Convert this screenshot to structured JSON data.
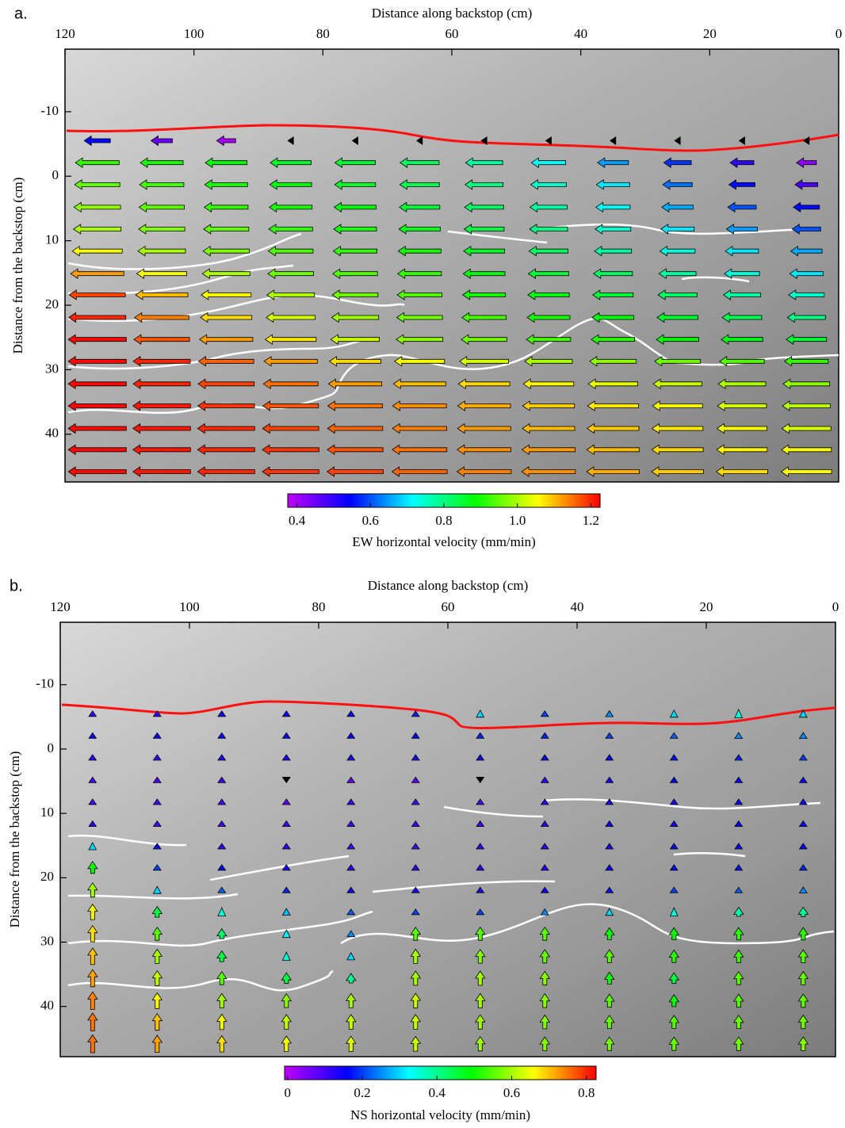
{
  "chart_data": [
    {
      "type": "quiver",
      "panel_label": "a.",
      "x_label": "Distance along backstop (cm)",
      "y_label": "Distance from the backstop (cm)",
      "direction": "left",
      "xlim": [
        120,
        0
      ],
      "xticks": [
        120,
        100,
        80,
        60,
        40,
        20,
        0
      ],
      "ylim": [
        -19.7,
        47.4
      ],
      "yticks": [
        -10,
        0,
        10,
        20,
        30,
        40
      ],
      "x": [
        115,
        105,
        95,
        85,
        75,
        65,
        55,
        45,
        35,
        25,
        15,
        5
      ],
      "y": [
        -5.5,
        -2.1,
        1.3,
        4.8,
        8.2,
        11.6,
        15.1,
        18.4,
        21.9,
        25.3,
        28.7,
        32.2,
        35.6,
        39.1,
        42.4,
        45.8
      ],
      "values": [
        [
          0.55,
          0.45,
          0.4,
          0.1,
          0.1,
          0.1,
          0.1,
          0.1,
          0.1,
          0.1,
          0.1,
          0.1
        ],
        [
          0.92,
          0.9,
          0.88,
          0.86,
          0.85,
          0.82,
          0.78,
          0.72,
          0.65,
          0.58,
          0.5,
          0.42
        ],
        [
          0.95,
          0.93,
          0.9,
          0.88,
          0.86,
          0.83,
          0.8,
          0.75,
          0.7,
          0.62,
          0.55,
          0.48
        ],
        [
          0.98,
          0.95,
          0.92,
          0.9,
          0.88,
          0.85,
          0.82,
          0.78,
          0.72,
          0.66,
          0.6,
          0.55
        ],
        [
          1.0,
          0.97,
          0.95,
          0.92,
          0.9,
          0.87,
          0.84,
          0.8,
          0.75,
          0.7,
          0.65,
          0.6
        ],
        [
          1.05,
          1.0,
          0.97,
          0.94,
          0.92,
          0.9,
          0.86,
          0.82,
          0.78,
          0.74,
          0.7,
          0.66
        ],
        [
          1.12,
          1.05,
          1.0,
          0.96,
          0.94,
          0.92,
          0.88,
          0.85,
          0.82,
          0.78,
          0.74,
          0.7
        ],
        [
          1.18,
          1.1,
          1.05,
          1.0,
          0.96,
          0.94,
          0.9,
          0.87,
          0.85,
          0.82,
          0.78,
          0.75
        ],
        [
          1.2,
          1.14,
          1.08,
          1.03,
          0.99,
          0.96,
          0.93,
          0.9,
          0.88,
          0.86,
          0.83,
          0.8
        ],
        [
          1.22,
          1.17,
          1.12,
          1.07,
          1.02,
          0.98,
          0.96,
          0.93,
          0.91,
          0.89,
          0.87,
          0.85
        ],
        [
          1.22,
          1.2,
          1.16,
          1.12,
          1.08,
          1.05,
          1.03,
          1.0,
          0.98,
          0.96,
          0.94,
          0.92
        ],
        [
          1.22,
          1.2,
          1.18,
          1.15,
          1.12,
          1.1,
          1.08,
          1.06,
          1.04,
          1.02,
          1.0,
          0.98
        ],
        [
          1.22,
          1.21,
          1.19,
          1.17,
          1.15,
          1.13,
          1.11,
          1.09,
          1.07,
          1.05,
          1.03,
          1.01
        ],
        [
          1.22,
          1.21,
          1.2,
          1.18,
          1.16,
          1.14,
          1.12,
          1.1,
          1.09,
          1.07,
          1.05,
          1.03
        ],
        [
          1.22,
          1.21,
          1.2,
          1.19,
          1.17,
          1.15,
          1.13,
          1.12,
          1.1,
          1.08,
          1.06,
          1.05
        ],
        [
          1.22,
          1.21,
          1.2,
          1.19,
          1.18,
          1.16,
          1.14,
          1.13,
          1.11,
          1.09,
          1.08,
          1.06
        ]
      ],
      "colormap": [
        "#c000ff",
        "#0000ff",
        "#00ffff",
        "#00ff00",
        "#ffff00",
        "#ff0000"
      ],
      "below_color": "#000000",
      "colorbar": {
        "label": "EW horizontal velocity (mm/min)",
        "clim": [
          0.375,
          1.225
        ],
        "ticks": [
          0.4,
          0.6,
          0.8,
          {
            "value": 1,
            "label": "1.0"
          },
          1.2
        ]
      }
    },
    {
      "type": "quiver",
      "panel_label": "b.",
      "x_label": "Distance along backstop (cm)",
      "y_label": "Distance from the backstop (cm)",
      "direction": "up",
      "xlim": [
        120,
        0
      ],
      "xticks": [
        120,
        100,
        80,
        60,
        40,
        20,
        0
      ],
      "ylim": [
        -19.7,
        47.8
      ],
      "yticks": [
        -10,
        0,
        10,
        20,
        30,
        40
      ],
      "x": [
        115,
        105,
        95,
        85,
        75,
        65,
        55,
        45,
        35,
        25,
        15,
        5
      ],
      "y": [
        -5.5,
        -2.1,
        1.3,
        4.8,
        8.2,
        11.6,
        15.1,
        18.4,
        21.9,
        25.3,
        28.7,
        32.2,
        35.6,
        39.1,
        42.4,
        45.8
      ],
      "values": [
        [
          0.12,
          0.12,
          0.14,
          0.15,
          0.15,
          0.18,
          0.3,
          0.2,
          0.25,
          0.3,
          0.35,
          0.3
        ],
        [
          0.15,
          0.15,
          0.15,
          0.15,
          0.15,
          0.16,
          0.18,
          0.18,
          0.2,
          0.22,
          0.25,
          0.25
        ],
        [
          0.12,
          0.12,
          0.13,
          0.14,
          0.14,
          0.15,
          0.15,
          0.16,
          0.16,
          0.17,
          0.18,
          0.2
        ],
        [
          0.1,
          0.1,
          0.1,
          -0.05,
          0.08,
          0.08,
          -0.05,
          0.12,
          0.14,
          0.15,
          0.15,
          0.15
        ],
        [
          0.1,
          0.1,
          0.1,
          0.08,
          0.1,
          0.1,
          0.1,
          0.12,
          0.14,
          0.14,
          0.15,
          0.15
        ],
        [
          0.12,
          0.1,
          0.1,
          0.1,
          0.1,
          0.1,
          0.1,
          0.12,
          0.14,
          0.14,
          0.15,
          0.15
        ],
        [
          0.3,
          0.15,
          0.12,
          0.12,
          0.1,
          0.1,
          0.12,
          0.12,
          0.14,
          0.15,
          0.15,
          0.16
        ],
        [
          0.5,
          0.2,
          0.15,
          0.14,
          0.12,
          0.12,
          0.12,
          0.13,
          0.15,
          0.16,
          0.17,
          0.18
        ],
        [
          0.6,
          0.3,
          0.22,
          0.18,
          0.15,
          0.14,
          0.14,
          0.15,
          0.17,
          0.2,
          0.22,
          0.25
        ],
        [
          0.65,
          0.45,
          0.35,
          0.28,
          0.22,
          0.2,
          0.2,
          0.25,
          0.3,
          0.35,
          0.38,
          0.4
        ],
        [
          0.68,
          0.55,
          0.42,
          0.32,
          0.25,
          0.55,
          0.55,
          0.55,
          0.5,
          0.5,
          0.52,
          0.52
        ],
        [
          0.7,
          0.6,
          0.45,
          0.35,
          0.3,
          0.6,
          0.58,
          0.56,
          0.55,
          0.52,
          0.53,
          0.55
        ],
        [
          0.72,
          0.62,
          0.55,
          0.45,
          0.4,
          0.6,
          0.6,
          0.58,
          0.5,
          0.45,
          0.55,
          0.56
        ],
        [
          0.74,
          0.66,
          0.6,
          0.58,
          0.6,
          0.62,
          0.6,
          0.58,
          0.55,
          0.5,
          0.55,
          0.56
        ],
        [
          0.75,
          0.7,
          0.65,
          0.62,
          0.62,
          0.62,
          0.6,
          0.58,
          0.56,
          0.55,
          0.56,
          0.57
        ],
        [
          0.75,
          0.72,
          0.68,
          0.65,
          0.64,
          0.62,
          0.6,
          0.58,
          0.57,
          0.56,
          0.57,
          0.58
        ]
      ],
      "colormap": [
        "#c000ff",
        "#0000ff",
        "#00ffff",
        "#00ff00",
        "#ffff00",
        "#ff0000"
      ],
      "below_color": "#000000",
      "colorbar": {
        "label": "NS horizontal velocity  (mm/min)",
        "clim": [
          -0.008,
          0.826
        ],
        "ticks": [
          0,
          0.2,
          0.4,
          0.6,
          0.8
        ]
      }
    }
  ]
}
